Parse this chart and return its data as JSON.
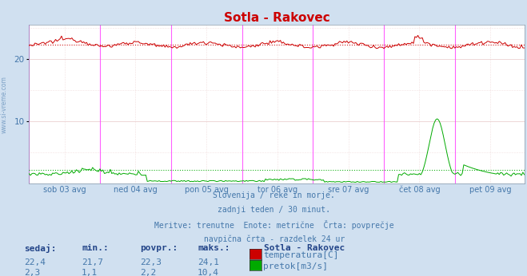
{
  "title": "Sotla - Rakovec",
  "bg_color": "#d0e0f0",
  "plot_bg_color": "#ffffff",
  "grid_color": "#e8c8c8",
  "x_labels": [
    "sob 03 avg",
    "ned 04 avg",
    "pon 05 avg",
    "tor 06 avg",
    "sre 07 avg",
    "čet 08 avg",
    "pet 09 avg"
  ],
  "y_ticks": [
    10,
    20
  ],
  "ylim": [
    0,
    25.5
  ],
  "temp_color": "#cc0000",
  "flow_color": "#00aa00",
  "vline_color": "#ff44ff",
  "subtitle_lines": [
    "Slovenija / reke in morje.",
    "zadnji teden / 30 minut.",
    "Meritve: trenutne  Enote: metrične  Črta: povprečje",
    "navpična črta - razdelek 24 ur"
  ],
  "table_headers": [
    "sedaj:",
    "min.:",
    "povpr.:",
    "maks.:"
  ],
  "table_row1": [
    "22,4",
    "21,7",
    "22,3",
    "24,1"
  ],
  "table_row2": [
    "2,3",
    "1,1",
    "2,2",
    "10,4"
  ],
  "legend_title": "Sotla - Rakovec",
  "legend_items": [
    "temperatura[C]",
    "pretok[m3/s]"
  ],
  "n_points": 336,
  "avg_temp": 22.3,
  "avg_flow": 2.2,
  "temp_min": 21.7,
  "temp_max": 24.1,
  "flow_max": 10.4,
  "text_color": "#4477aa",
  "header_color": "#224488"
}
